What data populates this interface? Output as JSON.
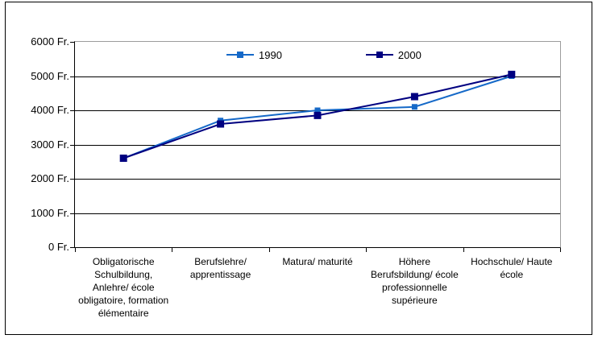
{
  "chart_data": {
    "type": "line",
    "title": "",
    "xlabel": "",
    "ylabel": "",
    "categories": [
      "Obligatorische\nSchulbildung,\nAnlehre/ école\nobligatoire, formation\nélémentaire",
      "Berufslehre/\napprentissage",
      "Matura/ maturité",
      "Höhere\nBerufsbildung/ école\nprofessionnelle\nsupérieure",
      "Hochschule/ Haute\nécole"
    ],
    "series": [
      {
        "name": "1990",
        "values": [
          2600,
          3700,
          4000,
          4100,
          5000
        ],
        "color": "#1569c8",
        "marker": "square"
      },
      {
        "name": "2000",
        "values": [
          2600,
          3600,
          3850,
          4400,
          5050
        ],
        "color": "#000080",
        "marker": "square"
      }
    ],
    "ylim": [
      0,
      6000
    ],
    "ytick_step": 1000,
    "ytick_labels": [
      "0 Fr.",
      "1000 Fr.",
      "2000 Fr.",
      "3000 Fr.",
      "4000 Fr.",
      "5000 Fr.",
      "6000 Fr."
    ],
    "grid": "horizontal",
    "legend_position": "top-center"
  },
  "colors": {
    "gridline": "#000000",
    "plot_border": "#9c9c9c",
    "outer_border": "#000000",
    "background": "#ffffff"
  }
}
